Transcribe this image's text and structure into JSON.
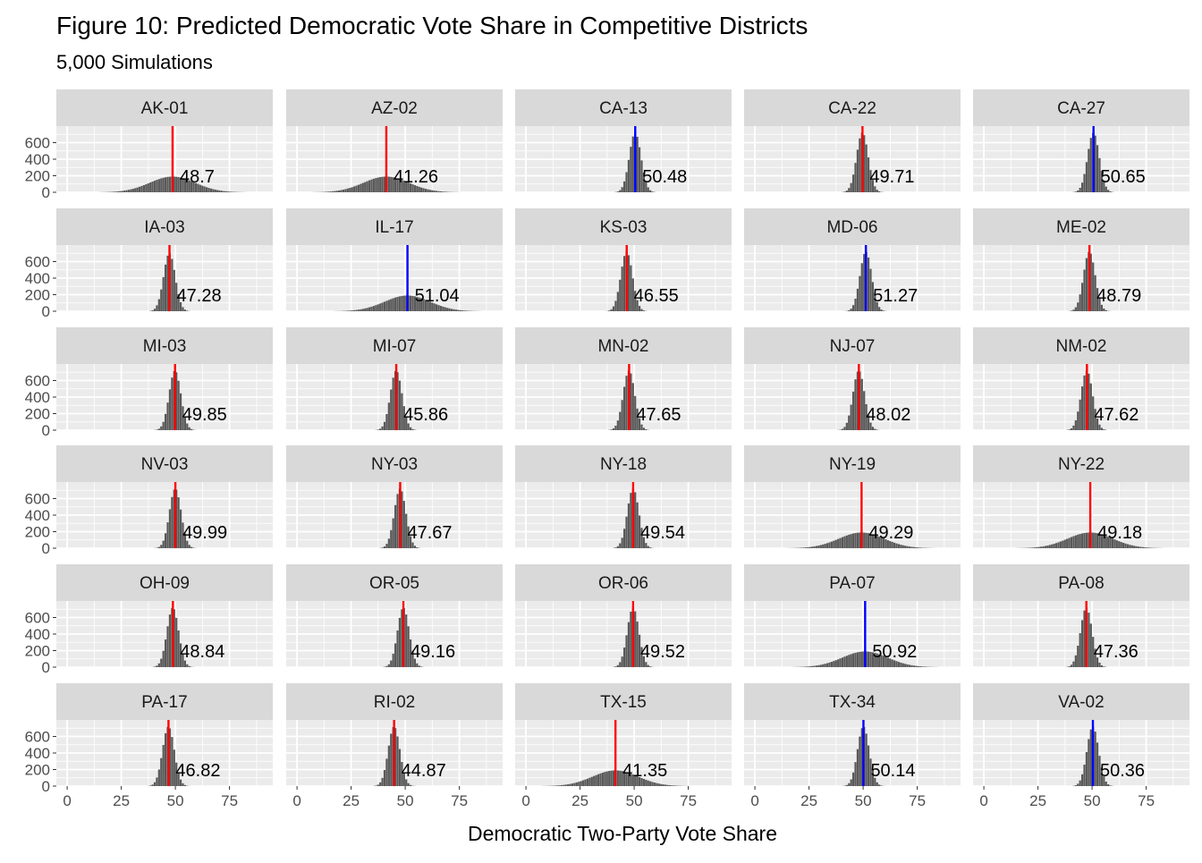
{
  "chart_data": {
    "type": "histogram",
    "layout": "facet-wrap 6x5",
    "title": "Figure 10: Predicted Democratic Vote Share in Competitive Districts",
    "subtitle": "5,000 Simulations",
    "xlabel": "Democratic Two-Party Vote Share",
    "ylabel": "",
    "xlim": [
      -5,
      95
    ],
    "ylim": [
      0,
      800
    ],
    "x_ticks": [
      0,
      25,
      50,
      75
    ],
    "y_ticks": [
      0,
      200,
      400,
      600
    ],
    "grid": true,
    "colors": {
      "panel_bg": "#ebebeb",
      "strip_bg": "#d9d9d9",
      "bar": "#595959",
      "line_red": "#ff0000",
      "line_blue": "#0000ff"
    },
    "facets": [
      {
        "district": "AK-01",
        "mean": 48.7,
        "label": "48.7",
        "peak": 190,
        "line_color": "red"
      },
      {
        "district": "AZ-02",
        "mean": 41.26,
        "label": "41.26",
        "peak": 190,
        "line_color": "red"
      },
      {
        "district": "CA-13",
        "mean": 50.48,
        "label": "50.48",
        "peak": 720,
        "line_color": "blue"
      },
      {
        "district": "CA-22",
        "mean": 49.71,
        "label": "49.71",
        "peak": 720,
        "line_color": "red"
      },
      {
        "district": "CA-27",
        "mean": 50.65,
        "label": "50.65",
        "peak": 720,
        "line_color": "blue"
      },
      {
        "district": "IA-03",
        "mean": 47.28,
        "label": "47.28",
        "peak": 700,
        "line_color": "red"
      },
      {
        "district": "IL-17",
        "mean": 51.04,
        "label": "51.04",
        "peak": 190,
        "line_color": "blue"
      },
      {
        "district": "KS-03",
        "mean": 46.55,
        "label": "46.55",
        "peak": 720,
        "line_color": "red"
      },
      {
        "district": "MD-06",
        "mean": 51.27,
        "label": "51.27",
        "peak": 720,
        "line_color": "blue"
      },
      {
        "district": "ME-02",
        "mean": 48.79,
        "label": "48.79",
        "peak": 720,
        "line_color": "red"
      },
      {
        "district": "MI-03",
        "mean": 49.85,
        "label": "49.85",
        "peak": 720,
        "line_color": "red"
      },
      {
        "district": "MI-07",
        "mean": 45.86,
        "label": "45.86",
        "peak": 720,
        "line_color": "red"
      },
      {
        "district": "MN-02",
        "mean": 47.65,
        "label": "47.65",
        "peak": 720,
        "line_color": "red"
      },
      {
        "district": "NJ-07",
        "mean": 48.02,
        "label": "48.02",
        "peak": 720,
        "line_color": "red"
      },
      {
        "district": "NM-02",
        "mean": 47.62,
        "label": "47.62",
        "peak": 720,
        "line_color": "red"
      },
      {
        "district": "NV-03",
        "mean": 49.99,
        "label": "49.99",
        "peak": 720,
        "line_color": "red"
      },
      {
        "district": "NY-03",
        "mean": 47.67,
        "label": "47.67",
        "peak": 720,
        "line_color": "red"
      },
      {
        "district": "NY-18",
        "mean": 49.54,
        "label": "49.54",
        "peak": 720,
        "line_color": "red"
      },
      {
        "district": "NY-19",
        "mean": 49.29,
        "label": "49.29",
        "peak": 190,
        "line_color": "red"
      },
      {
        "district": "NY-22",
        "mean": 49.18,
        "label": "49.18",
        "peak": 190,
        "line_color": "red"
      },
      {
        "district": "OH-09",
        "mean": 48.84,
        "label": "48.84",
        "peak": 720,
        "line_color": "red"
      },
      {
        "district": "OR-05",
        "mean": 49.16,
        "label": "49.16",
        "peak": 720,
        "line_color": "red"
      },
      {
        "district": "OR-06",
        "mean": 49.52,
        "label": "49.52",
        "peak": 720,
        "line_color": "red"
      },
      {
        "district": "PA-07",
        "mean": 50.92,
        "label": "50.92",
        "peak": 190,
        "line_color": "blue"
      },
      {
        "district": "PA-08",
        "mean": 47.36,
        "label": "47.36",
        "peak": 720,
        "line_color": "red"
      },
      {
        "district": "PA-17",
        "mean": 46.82,
        "label": "46.82",
        "peak": 720,
        "line_color": "red"
      },
      {
        "district": "RI-02",
        "mean": 44.87,
        "label": "44.87",
        "peak": 720,
        "line_color": "red"
      },
      {
        "district": "TX-15",
        "mean": 41.35,
        "label": "41.35",
        "peak": 190,
        "line_color": "red"
      },
      {
        "district": "TX-34",
        "mean": 50.14,
        "label": "50.14",
        "peak": 720,
        "line_color": "blue"
      },
      {
        "district": "VA-02",
        "mean": 50.36,
        "label": "50.36",
        "peak": 720,
        "line_color": "blue"
      }
    ]
  }
}
